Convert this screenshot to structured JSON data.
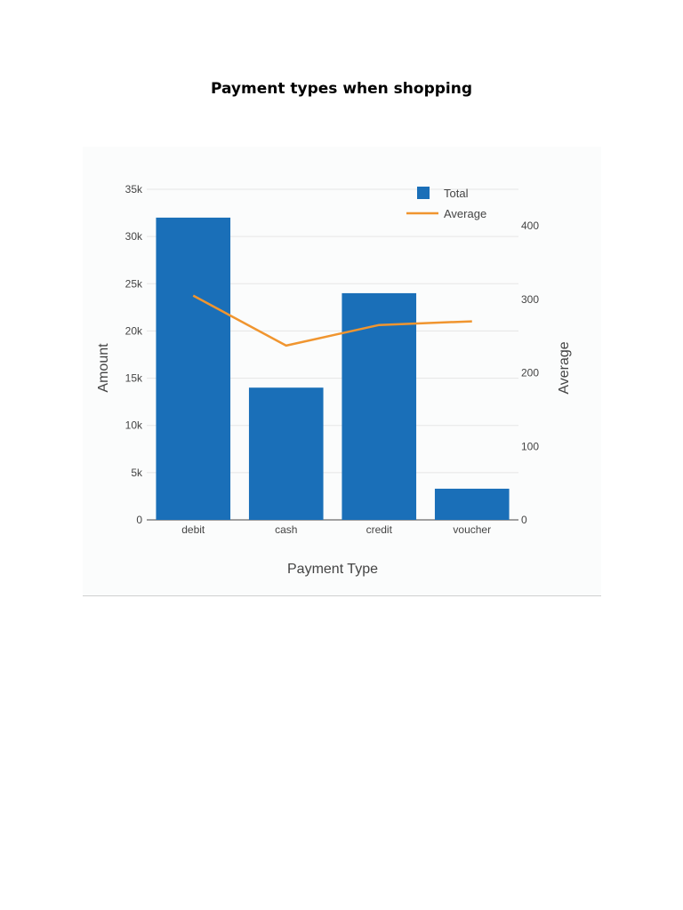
{
  "page": {
    "title": "Payment types when shopping"
  },
  "chart_data": {
    "type": "bar",
    "categories": [
      "debit",
      "cash",
      "credit",
      "voucher"
    ],
    "series": [
      {
        "name": "Total",
        "type": "bar",
        "axis": "left",
        "color": "#1a6fb8",
        "values": [
          32000,
          14000,
          24000,
          3300
        ]
      },
      {
        "name": "Average",
        "type": "line",
        "axis": "right",
        "color": "#f0952f",
        "values": [
          305,
          237,
          265,
          270
        ]
      }
    ],
    "xlabel": "Payment Type",
    "ylabel": "Amount",
    "y2label": "Average",
    "ylim": [
      0,
      35000
    ],
    "y2lim": [
      0,
      400
    ],
    "yticks": [
      "0",
      "5k",
      "10k",
      "15k",
      "20k",
      "25k",
      "30k",
      "35k"
    ],
    "ytick_values": [
      0,
      5000,
      10000,
      15000,
      20000,
      25000,
      30000,
      35000
    ],
    "y2ticks": [
      "0",
      "100",
      "200",
      "300",
      "400"
    ],
    "y2tick_values": [
      0,
      100,
      200,
      300,
      400
    ],
    "grid": true,
    "legend_position": "top-right"
  }
}
